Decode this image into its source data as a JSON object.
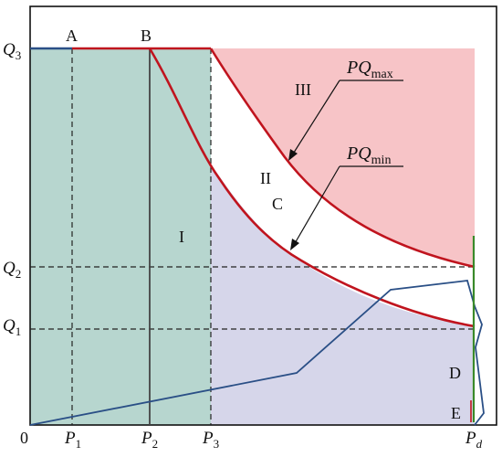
{
  "diagram": {
    "axis": {
      "origin_label": "0",
      "y_labels": {
        "q3_main": "Q",
        "q3_sub": "3",
        "q2_main": "Q",
        "q2_sub": "2",
        "q1_main": "Q",
        "q1_sub": "1"
      },
      "x_labels": {
        "p1_main": "P",
        "p1_sub": "1",
        "p2_main": "P",
        "p2_sub": "2",
        "p3_main": "P",
        "p3_sub": "3",
        "pd_main": "P",
        "pd_sub": "d"
      }
    },
    "point_labels": {
      "a": "A",
      "b": "B",
      "c": "C",
      "d": "D",
      "e": "E"
    },
    "region_labels": {
      "r1": "I",
      "r2": "II",
      "r3": "III"
    },
    "callouts": {
      "pq_max_main": "PQ",
      "pq_max_sub": "max",
      "pq_min_main": "PQ",
      "pq_min_sub": "min"
    },
    "colors": {
      "frame": "#111111",
      "region_green": "#b7d6cf",
      "region_purple": "#d6d6ea",
      "region_pink": "#f7c4c7",
      "curve_red": "#c0141e",
      "line_blue": "#2a4f86",
      "line_green": "#3a8a2a",
      "dashed": "#222222"
    }
  }
}
